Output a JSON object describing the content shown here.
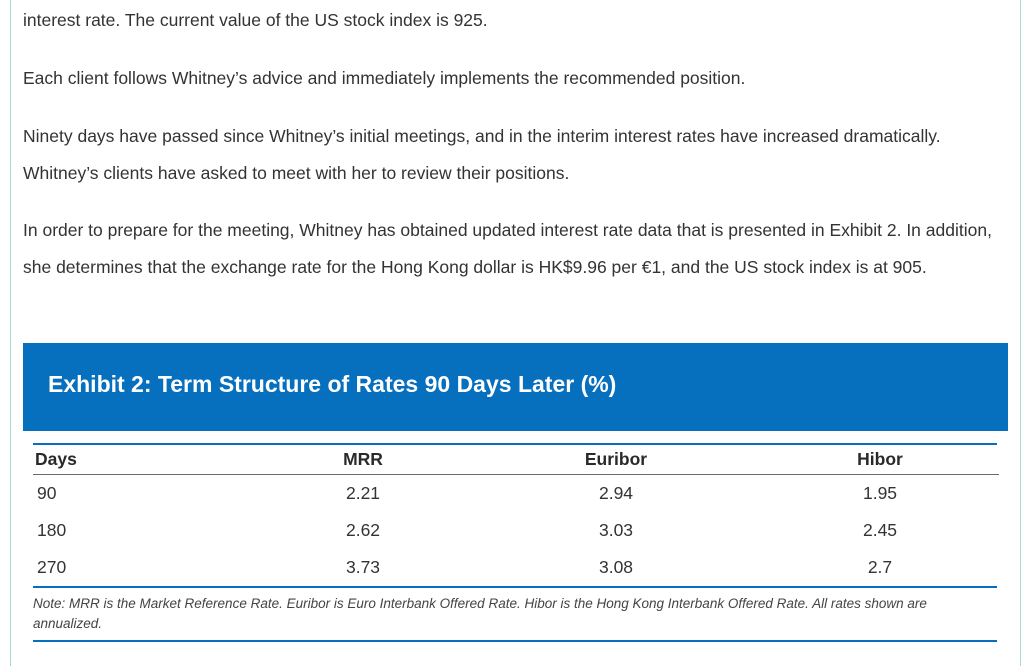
{
  "paragraphs": [
    "interest rate. The current value of the US stock index is 925.",
    "Each client follows Whitney’s advice and immediately implements the recommended position.",
    "Ninety days have passed since Whitney’s initial meetings, and in the interim interest rates have increased dramatically. Whitney’s clients have asked to meet with her to review their positions.",
    "In order to prepare for the meeting, Whitney has obtained updated interest rate data that is presented in Exhibit 2. In addition, she determines that the exchange rate for the Hong Kong dollar is HK$9.96 per €1, and the US stock index is at 905."
  ],
  "exhibit": {
    "title": "Exhibit 2: Term Structure of Rates 90 Days Later (%)",
    "columns": [
      "Days",
      "MRR",
      "Euribor",
      "Hibor"
    ],
    "rows": [
      [
        "90",
        "2.21",
        "2.94",
        "1.95"
      ],
      [
        "180",
        "2.62",
        "3.03",
        "2.45"
      ],
      [
        "270",
        "3.73",
        "3.08",
        "2.7"
      ]
    ],
    "note": "Note: MRR is the Market Reference Rate. Euribor is Euro Interbank Offered Rate. Hibor is the Hong Kong Interbank Offered Rate. All rates shown are annualized."
  },
  "colors": {
    "header_blue": "#0670bf",
    "frame_green": "#a8dcc8"
  }
}
